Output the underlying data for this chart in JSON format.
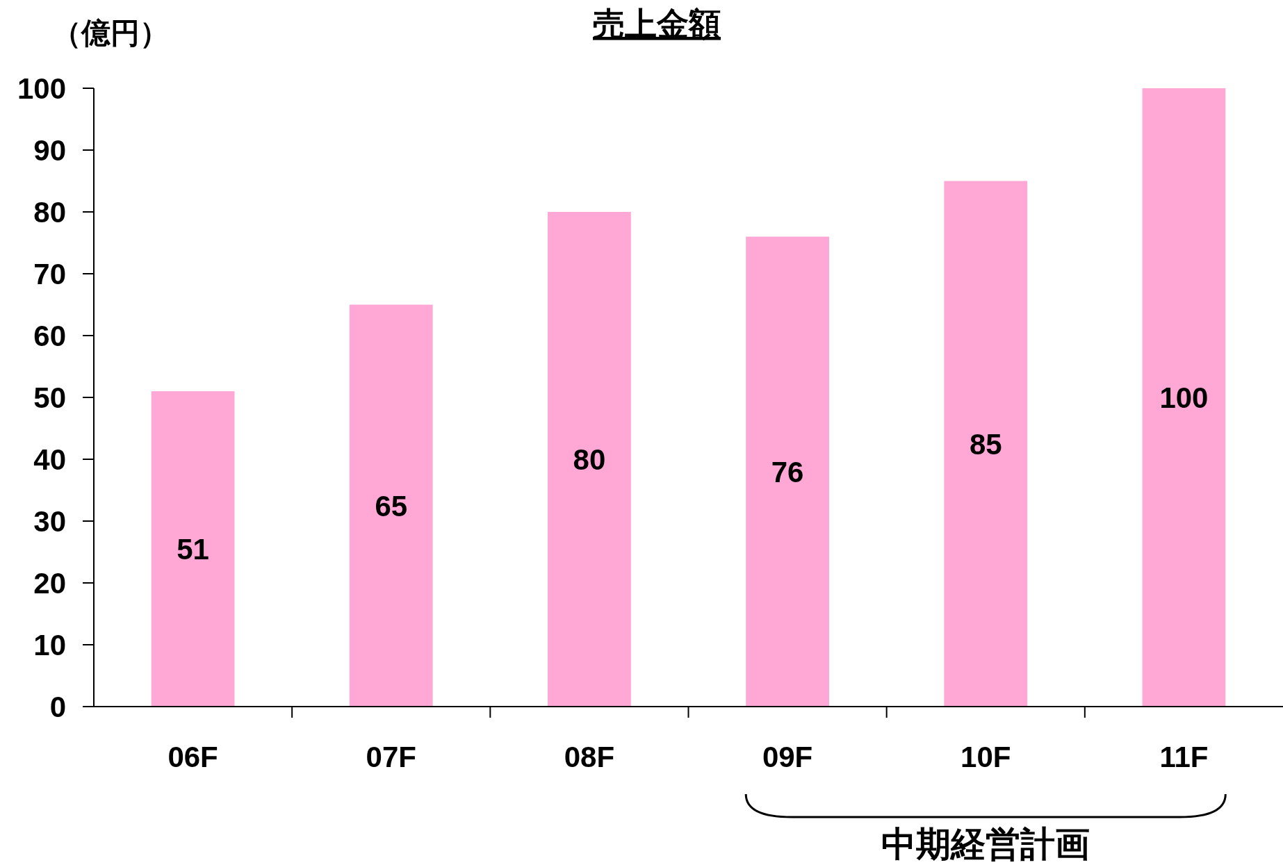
{
  "chart_data": {
    "type": "bar",
    "title": "売上金額",
    "ylabel": "（億円）",
    "categories": [
      "06F",
      "07F",
      "08F",
      "09F",
      "10F",
      "11F"
    ],
    "values": [
      51,
      65,
      80,
      76,
      85,
      100
    ],
    "color": "#ffa8d5",
    "ylim": [
      0,
      100
    ],
    "yticks": [
      0,
      10,
      20,
      30,
      40,
      50,
      60,
      70,
      80,
      90,
      100
    ],
    "data_labels": true,
    "annotations": [
      "中期経営計画"
    ]
  }
}
